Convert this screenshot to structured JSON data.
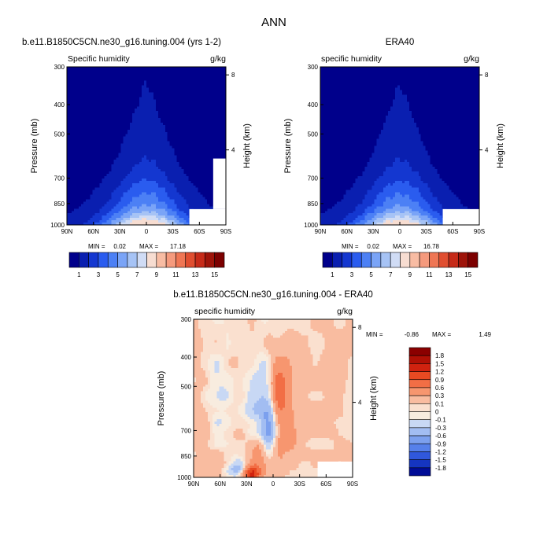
{
  "figure_title": "ANN",
  "chart_data": [
    {
      "type": "heatmap",
      "title": "b.e11.B1850C5CN.ne30_g16.tuning.004 (yrs 1-2)",
      "subtitle_left": "Specific humidity",
      "subtitle_right": "g/kg",
      "xlabel": "",
      "ylabel": "Pressure (mb)",
      "ylabel_right": "Height (km)",
      "x_ticks": [
        "90N",
        "60N",
        "30N",
        "0",
        "30S",
        "60S",
        "90S"
      ],
      "y_ticks": [
        "300",
        "400",
        "500",
        "700",
        "850",
        "1000"
      ],
      "y_right_ticks": [
        "8",
        "4"
      ],
      "x_range": [
        90,
        -90
      ],
      "y_range_mb": [
        300,
        1000
      ],
      "stats": {
        "min_label": "MIN =",
        "min": "0.02",
        "max_label": "MAX =",
        "max": "17.18"
      },
      "field_max": 17.18,
      "colorbar": {
        "orientation": "horizontal",
        "labels": [
          "1",
          "3",
          "5",
          "7",
          "9",
          "11",
          "13",
          "15"
        ],
        "colors": [
          "#00008b",
          "#0a1fb0",
          "#1437d0",
          "#2a5cef",
          "#4c80f5",
          "#7aa4f7",
          "#a6c3f5",
          "#d0dcf5",
          "#f7ddd1",
          "#f8bca3",
          "#f59a7d",
          "#ef7654",
          "#e04e30",
          "#c62a18",
          "#9e1309",
          "#7c0000"
        ]
      }
    },
    {
      "type": "heatmap",
      "title": "ERA40",
      "subtitle_left": "specific humidity",
      "subtitle_right": "g/kg",
      "xlabel": "",
      "ylabel": "Pressure (mb)",
      "ylabel_right": "Height (km)",
      "x_ticks": [
        "90N",
        "60N",
        "30N",
        "0",
        "30S",
        "60S",
        "90S"
      ],
      "y_ticks": [
        "300",
        "400",
        "500",
        "700",
        "850",
        "1000"
      ],
      "y_right_ticks": [
        "8",
        "4"
      ],
      "x_range": [
        90,
        -90
      ],
      "y_range_mb": [
        300,
        1000
      ],
      "stats": {
        "min_label": "MIN =",
        "min": "0.02",
        "max_label": "MAX =",
        "max": "16.78"
      },
      "field_max": 16.78,
      "colorbar": {
        "orientation": "horizontal",
        "labels": [
          "1",
          "3",
          "5",
          "7",
          "9",
          "11",
          "13",
          "15"
        ],
        "colors": [
          "#00008b",
          "#0a1fb0",
          "#1437d0",
          "#2a5cef",
          "#4c80f5",
          "#7aa4f7",
          "#a6c3f5",
          "#d0dcf5",
          "#f7ddd1",
          "#f8bca3",
          "#f59a7d",
          "#ef7654",
          "#e04e30",
          "#c62a18",
          "#9e1309",
          "#7c0000"
        ]
      }
    },
    {
      "type": "heatmap",
      "title": "b.e11.B1850C5CN.ne30_g16.tuning.004 - ERA40",
      "subtitle_left": "specific humidity",
      "subtitle_right": "g/kg",
      "xlabel": "",
      "ylabel": "Pressure (mb)",
      "ylabel_right": "Height (km)",
      "x_ticks": [
        "90N",
        "60N",
        "30N",
        "0",
        "30S",
        "60S",
        "90S"
      ],
      "y_ticks": [
        "300",
        "400",
        "500",
        "700",
        "850",
        "1000"
      ],
      "y_right_ticks": [
        "8",
        "4"
      ],
      "x_range": [
        90,
        -90
      ],
      "y_range_mb": [
        300,
        1000
      ],
      "stats": {
        "min_label": "MIN =",
        "min": "-0.86",
        "max_label": "MAX =",
        "max": "1.49"
      },
      "colorbar": {
        "orientation": "vertical",
        "labels": [
          "1.8",
          "1.5",
          "1.2",
          "0.9",
          "0.6",
          "0.3",
          "0.1",
          "0",
          "-0.1",
          "-0.3",
          "-0.6",
          "-0.9",
          "-1.2",
          "-1.5",
          "-1.8"
        ],
        "colors": [
          "#8b0000",
          "#b01005",
          "#d0220f",
          "#e84a22",
          "#f26e45",
          "#f7966f",
          "#f9bca0",
          "#fae0cf",
          "#f8ecdf",
          "#c8d8f4",
          "#a2bdf2",
          "#7ca0ee",
          "#5680ea",
          "#3058dc",
          "#1535c0",
          "#000c96"
        ]
      }
    }
  ]
}
